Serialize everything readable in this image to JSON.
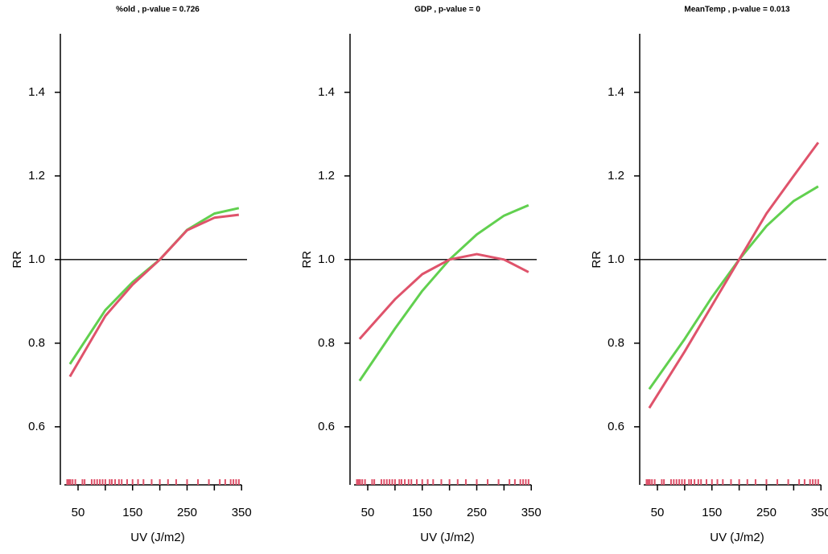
{
  "chart_data": [
    {
      "type": "line",
      "title": "%old , p-value = 0.726",
      "xlabel": "UV (J/m2)",
      "ylabel": "RR",
      "x": [
        35,
        100,
        150,
        200,
        250,
        300,
        345
      ],
      "series": [
        {
          "color": "#61D04F",
          "values": [
            0.75,
            0.879,
            0.946,
            1.0,
            1.071,
            1.11,
            1.123
          ]
        },
        {
          "color": "#DF536B",
          "values": [
            0.72,
            0.865,
            0.94,
            1.0,
            1.07,
            1.1,
            1.107
          ]
        }
      ],
      "xlim": [
        17.5,
        360
      ],
      "ylim": [
        0.465,
        1.54
      ],
      "xticks": [
        50,
        150,
        250,
        350
      ],
      "xminorticks": [
        100,
        200,
        300
      ],
      "yticks": [
        0.6,
        0.8,
        {
          "value": 1,
          "label": "1.0"
        },
        1.2,
        1.4
      ],
      "hline": 1,
      "rug_color": "#DF536B",
      "rug": [
        30,
        33,
        36,
        40,
        45,
        58,
        62,
        75,
        80,
        85,
        90,
        95,
        100,
        108,
        112,
        118,
        125,
        130,
        140,
        150,
        160,
        170,
        185,
        200,
        215,
        230,
        250,
        270,
        290,
        310,
        320,
        330,
        335,
        340,
        345
      ]
    },
    {
      "type": "line",
      "title": "GDP , p-value = 0",
      "xlabel": "UV (J/m2)",
      "ylabel": "RR",
      "x": [
        35,
        100,
        150,
        200,
        250,
        300,
        345
      ],
      "series": [
        {
          "color": "#61D04F",
          "values": [
            0.71,
            0.835,
            0.925,
            1.0,
            1.06,
            1.105,
            1.13
          ]
        },
        {
          "color": "#DF536B",
          "values": [
            0.81,
            0.905,
            0.965,
            1.0,
            1.013,
            1.0,
            0.97
          ]
        }
      ],
      "xlim": [
        17.5,
        360
      ],
      "ylim": [
        0.465,
        1.54
      ],
      "xticks": [
        50,
        150,
        250,
        350
      ],
      "xminorticks": [
        100,
        200,
        300
      ],
      "yticks": [
        0.6,
        0.8,
        {
          "value": 1,
          "label": "1.0"
        },
        1.2,
        1.4
      ],
      "hline": 1,
      "rug_color": "#DF536B",
      "rug": [
        30,
        33,
        36,
        40,
        45,
        58,
        62,
        75,
        80,
        85,
        90,
        95,
        100,
        108,
        112,
        118,
        125,
        130,
        140,
        150,
        160,
        170,
        185,
        200,
        215,
        230,
        250,
        270,
        290,
        310,
        320,
        330,
        335,
        340,
        345
      ]
    },
    {
      "type": "line",
      "title": "MeanTemp , p-value = 0.013",
      "xlabel": "UV (J/m2)",
      "ylabel": "RR",
      "x": [
        35,
        100,
        150,
        200,
        250,
        300,
        345
      ],
      "series": [
        {
          "color": "#61D04F",
          "values": [
            0.69,
            0.81,
            0.91,
            1.0,
            1.08,
            1.14,
            1.175
          ]
        },
        {
          "color": "#DF536B",
          "values": [
            0.645,
            0.78,
            0.89,
            1.0,
            1.11,
            1.2,
            1.28
          ]
        }
      ],
      "xlim": [
        17.5,
        360
      ],
      "ylim": [
        0.465,
        1.54
      ],
      "xticks": [
        50,
        150,
        250,
        350
      ],
      "xminorticks": [
        100,
        200,
        300
      ],
      "yticks": [
        0.6,
        0.8,
        {
          "value": 1,
          "label": "1.0"
        },
        1.2,
        1.4
      ],
      "hline": 1,
      "rug_color": "#DF536B",
      "rug": [
        30,
        33,
        36,
        40,
        45,
        58,
        62,
        75,
        80,
        85,
        90,
        95,
        100,
        108,
        112,
        118,
        125,
        130,
        140,
        150,
        160,
        170,
        185,
        200,
        215,
        230,
        250,
        270,
        290,
        310,
        320,
        330,
        335,
        340,
        345
      ]
    }
  ]
}
